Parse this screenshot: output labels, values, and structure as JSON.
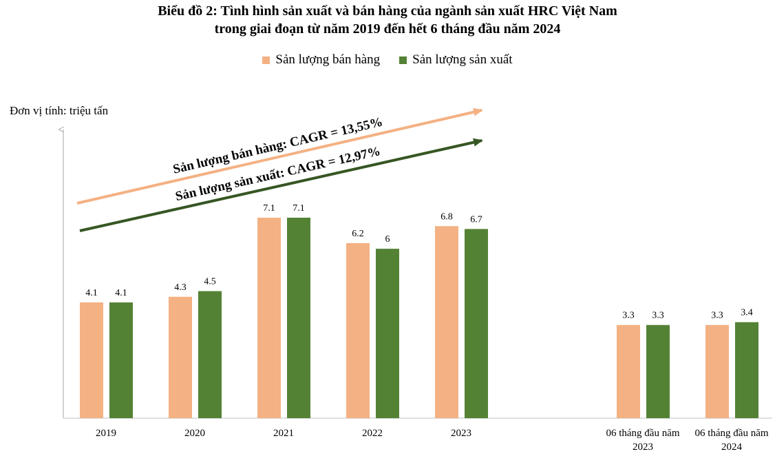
{
  "chart_data": {
    "type": "bar",
    "title": "Biểu đồ 2: Tình hình sản xuất và bán hàng của ngành sản xuất HRC Việt Nam",
    "subtitle": "trong giai đoạn từ năm 2019 đến hết 6 tháng đầu năm 2024",
    "unit_label": "Đơn vị tính: triệu tấn",
    "categories": [
      [
        "2019"
      ],
      [
        "2020"
      ],
      [
        "2021"
      ],
      [
        "2022"
      ],
      [
        "2023"
      ],
      [
        "06 tháng đầu năm",
        "2023"
      ],
      [
        "06 tháng đầu năm",
        "2024"
      ]
    ],
    "series": [
      {
        "name": "Sản lượng bán hàng",
        "color": "#F4B183",
        "values": [
          4.1,
          4.3,
          7.1,
          6.2,
          6.8,
          3.3,
          3.3
        ],
        "labels": [
          "4.1",
          "4.3",
          "7.1",
          "6.2",
          "6.8",
          "3.3",
          "3.3"
        ]
      },
      {
        "name": "Sản lượng sản xuất",
        "color": "#548235",
        "values": [
          4.1,
          4.5,
          7.1,
          6.0,
          6.7,
          3.3,
          3.4
        ],
        "labels": [
          "4.1",
          "4.5",
          "7.1",
          "6",
          "6.7",
          "3.3",
          "3.4"
        ]
      }
    ],
    "ylim": [
      0,
      7.1
    ],
    "annotations": [
      {
        "text": "Sản lượng bán hàng: CAGR = 13,55%",
        "color": "#F4B183"
      },
      {
        "text": "Sản lượng sản xuất: CAGR = 12,97%",
        "color": "#375623"
      }
    ],
    "grid": false,
    "legend_position": "top-center"
  }
}
